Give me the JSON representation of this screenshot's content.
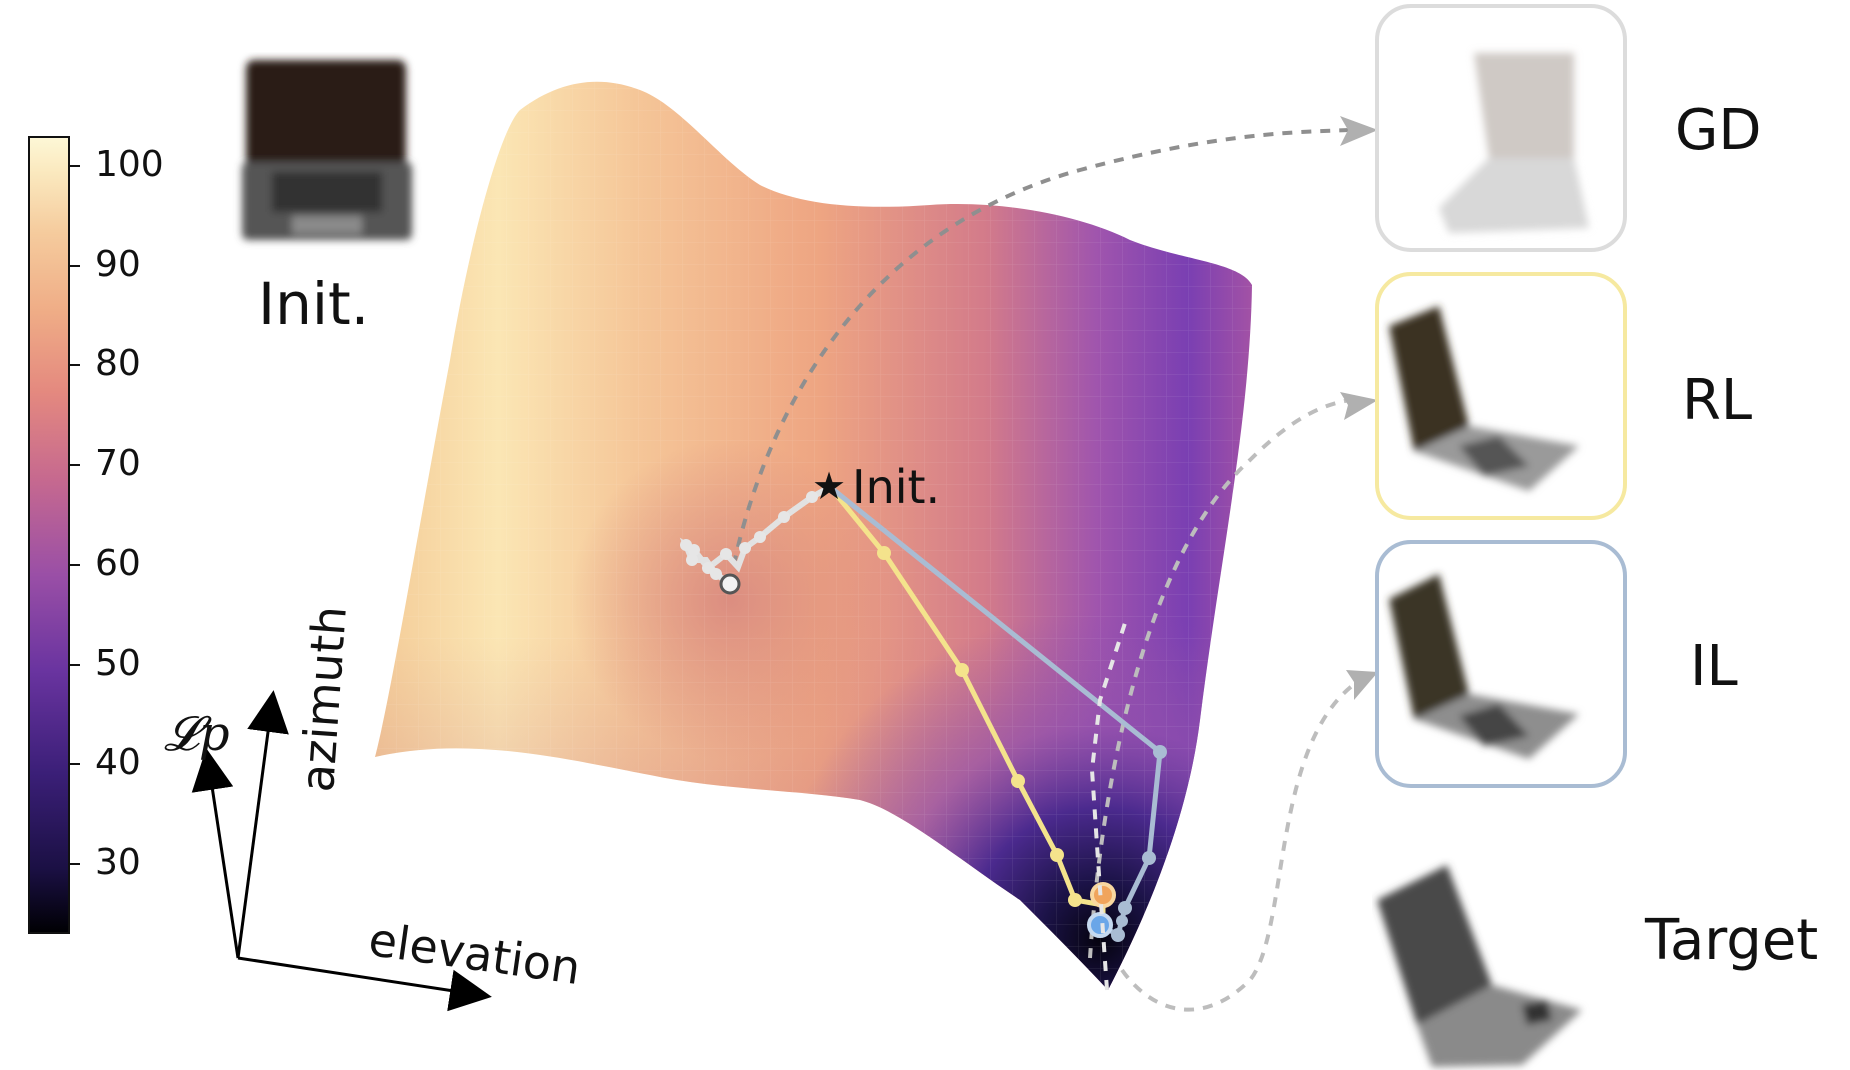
{
  "colorbar": {
    "ticks": [
      "100",
      "90",
      "80",
      "70",
      "60",
      "50",
      "40",
      "30"
    ],
    "tick_values": [
      100,
      90,
      80,
      70,
      60,
      50,
      40,
      30
    ],
    "range": [
      23,
      103
    ],
    "colormap": [
      "#000004",
      "#2a1859",
      "#5a2f97",
      "#8e52aa",
      "#c6698f",
      "#e99a7c",
      "#f4c79a",
      "#fcfdbf"
    ]
  },
  "axes": {
    "loss_label": "𝓛p",
    "azimuth_label": "azimuth",
    "elevation_label": "elevation"
  },
  "init_thumbnail": {
    "label": "Init.",
    "icon": "laptop-icon"
  },
  "surface": {
    "start_marker_label": "Init.",
    "start_marker_glyph": "★",
    "methods": [
      {
        "key": "gd",
        "label": "GD",
        "color": "#dcdcdc"
      },
      {
        "key": "rl",
        "label": "RL",
        "color": "#f4e38c"
      },
      {
        "key": "il",
        "label": "IL",
        "color": "#a9bcd3"
      }
    ]
  },
  "results": [
    {
      "label": "GD",
      "border": "#dcdcdc",
      "icon": "laptop-open-white-icon"
    },
    {
      "label": "RL",
      "border": "#f6e9a0",
      "icon": "laptop-open-dark-icon"
    },
    {
      "label": "IL",
      "border": "#a9bcd3",
      "icon": "laptop-open-dark-icon"
    },
    {
      "label": "Target",
      "border": "none",
      "icon": "laptop-open-gray-icon"
    }
  ]
}
